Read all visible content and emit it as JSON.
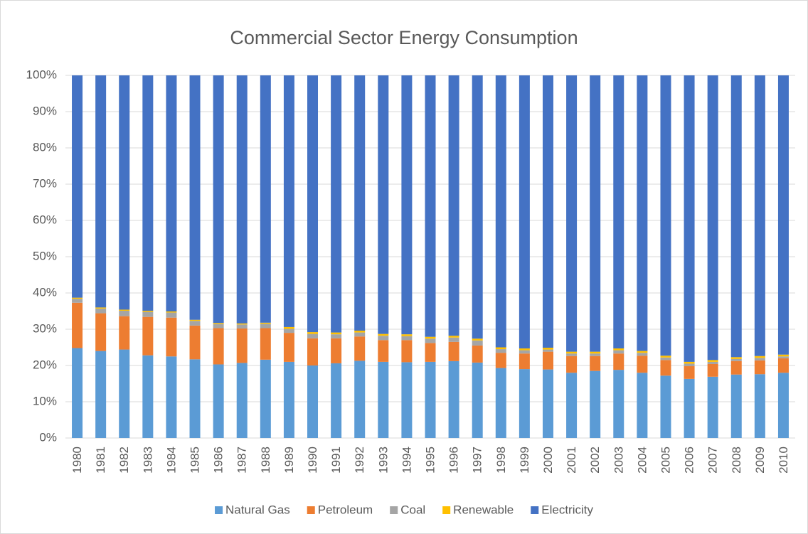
{
  "chart_data": {
    "type": "stacked_bar",
    "title": "Commercial Sector Energy Consumption",
    "categories": [
      "1980",
      "1981",
      "1982",
      "1983",
      "1984",
      "1985",
      "1986",
      "1987",
      "1988",
      "1989",
      "1990",
      "1991",
      "1992",
      "1993",
      "1994",
      "1995",
      "1996",
      "1997",
      "1998",
      "1999",
      "2000",
      "2001",
      "2002",
      "2003",
      "2004",
      "2005",
      "2006",
      "2007",
      "2008",
      "2009",
      "2010"
    ],
    "series": [
      {
        "name": "Natural Gas",
        "color": "#5b9bd5",
        "values": [
          24.8,
          24.0,
          24.4,
          22.8,
          22.5,
          21.7,
          20.3,
          20.7,
          21.6,
          21.0,
          20.0,
          20.6,
          21.3,
          21.0,
          20.9,
          21.0,
          21.2,
          20.8,
          19.3,
          19.0,
          18.9,
          18.0,
          18.5,
          18.8,
          18.0,
          17.2,
          16.3,
          16.9,
          17.5,
          17.6,
          18.0
        ]
      },
      {
        "name": "Petroleum",
        "color": "#ed7d31",
        "values": [
          12.5,
          10.4,
          9.2,
          10.6,
          10.7,
          9.3,
          10.0,
          9.5,
          8.7,
          8.0,
          7.5,
          6.9,
          6.7,
          6.0,
          6.1,
          5.2,
          5.3,
          4.7,
          4.2,
          4.3,
          4.9,
          4.6,
          4.1,
          4.5,
          4.7,
          4.3,
          3.5,
          3.5,
          3.7,
          3.8,
          4.0
        ]
      },
      {
        "name": "Coal",
        "color": "#a5a5a5",
        "values": [
          1.1,
          1.3,
          1.5,
          1.4,
          1.4,
          1.3,
          1.1,
          1.1,
          1.2,
          1.1,
          1.2,
          1.1,
          1.1,
          1.2,
          1.1,
          1.2,
          1.2,
          1.4,
          1.0,
          0.9,
          0.6,
          0.7,
          0.7,
          0.9,
          0.8,
          0.7,
          0.7,
          0.6,
          0.6,
          0.7,
          0.5
        ]
      },
      {
        "name": "Renewable",
        "color": "#ffc000",
        "values": [
          0.3,
          0.3,
          0.3,
          0.3,
          0.3,
          0.3,
          0.3,
          0.3,
          0.3,
          0.5,
          0.5,
          0.5,
          0.5,
          0.5,
          0.5,
          0.5,
          0.5,
          0.5,
          0.5,
          0.5,
          0.5,
          0.5,
          0.5,
          0.5,
          0.5,
          0.5,
          0.5,
          0.5,
          0.5,
          0.5,
          0.5
        ]
      },
      {
        "name": "Electricity",
        "color": "#4472c4",
        "values": [
          61.3,
          64.0,
          64.6,
          64.9,
          65.1,
          67.4,
          68.3,
          68.4,
          68.2,
          69.4,
          70.8,
          70.9,
          70.4,
          71.3,
          71.4,
          72.1,
          71.8,
          72.6,
          75.0,
          75.3,
          75.1,
          76.2,
          76.2,
          75.3,
          76.0,
          77.3,
          79.0,
          78.5,
          77.7,
          77.4,
          77.0
        ]
      }
    ],
    "ylim": [
      0,
      100
    ],
    "yticks": [
      {
        "value": 0,
        "label": "0%"
      },
      {
        "value": 10,
        "label": "10%"
      },
      {
        "value": 20,
        "label": "20%"
      },
      {
        "value": 30,
        "label": "30%"
      },
      {
        "value": 40,
        "label": "40%"
      },
      {
        "value": 50,
        "label": "50%"
      },
      {
        "value": 60,
        "label": "60%"
      },
      {
        "value": 70,
        "label": "70%"
      },
      {
        "value": 80,
        "label": "80%"
      },
      {
        "value": 90,
        "label": "90%"
      },
      {
        "value": 100,
        "label": "100%"
      }
    ],
    "grid": true,
    "legend": "bottom"
  }
}
